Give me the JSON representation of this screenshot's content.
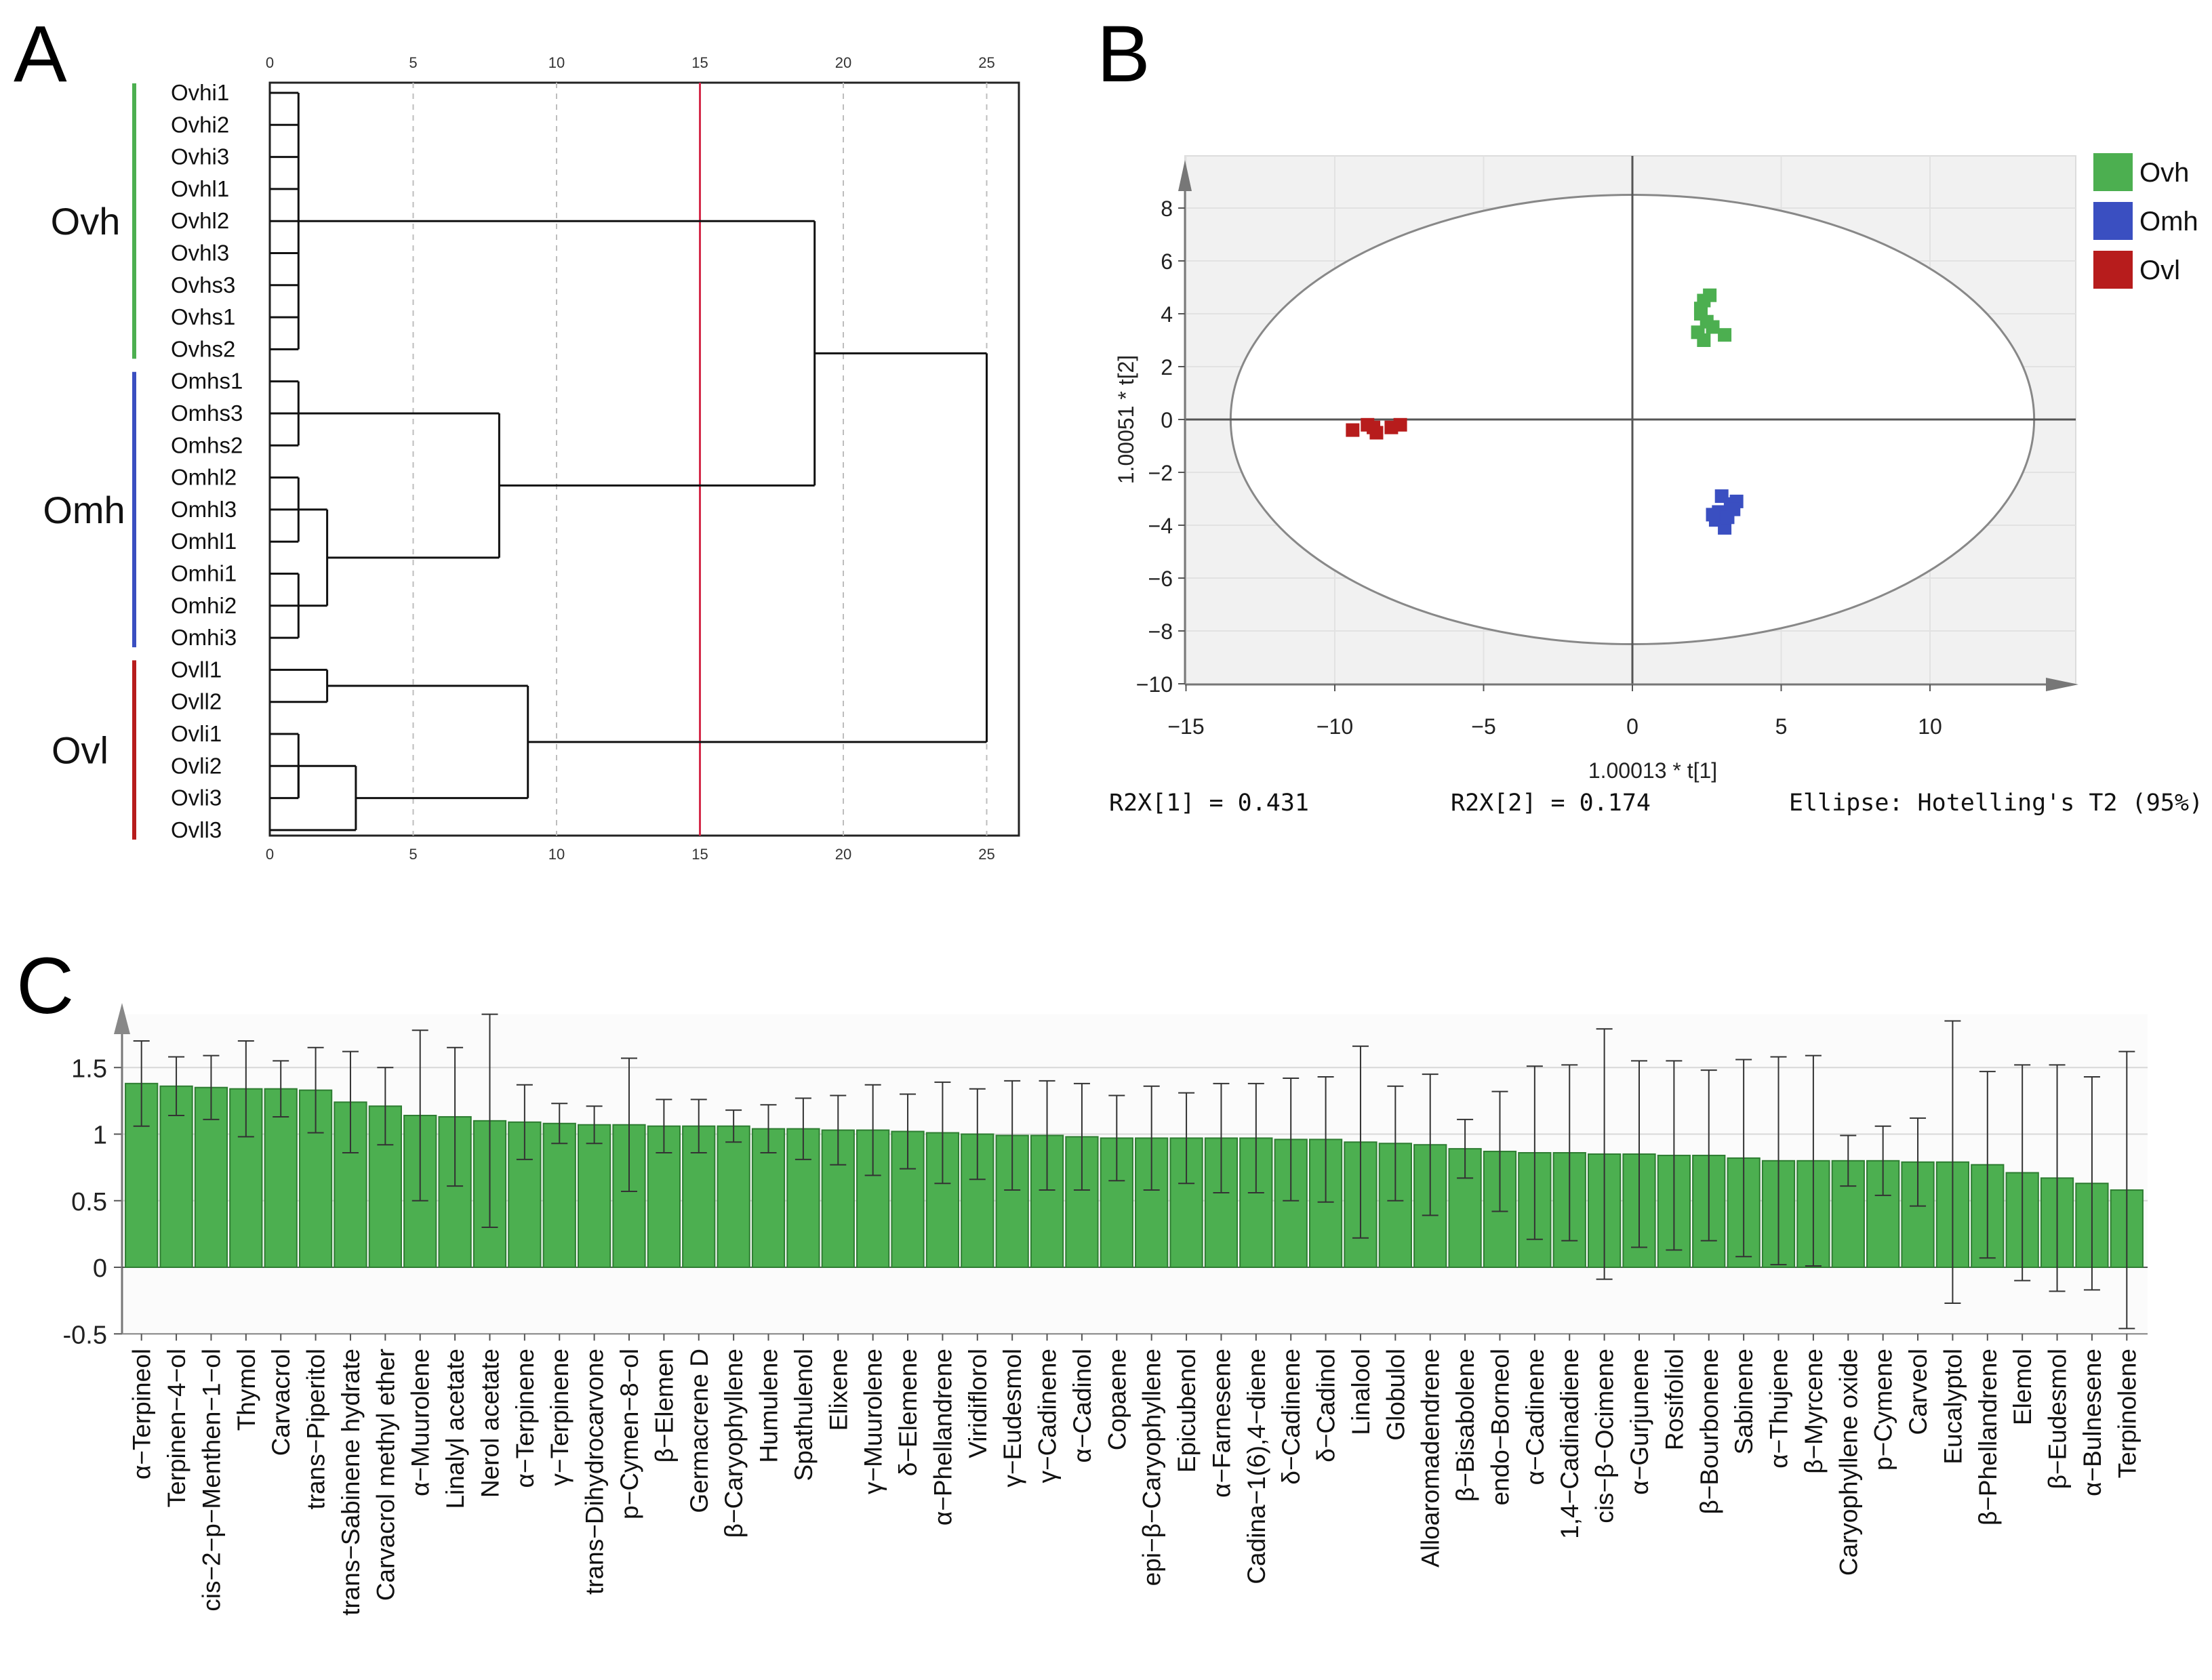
{
  "panels": {
    "a": "A",
    "b": "B",
    "c": "C"
  },
  "chart_data": [
    {
      "type": "dendrogram",
      "panel": "A",
      "axis_ticks": [
        0,
        5,
        10,
        15,
        20,
        25
      ],
      "cut_line_distance": 15,
      "cut_line_color": "#d42a4a",
      "leaves": [
        "Ovhi1",
        "Ovhi2",
        "Ovhi3",
        "Ovhl1",
        "Ovhl2",
        "Ovhl3",
        "Ovhs3",
        "Ovhs1",
        "Ovhs2",
        "Omhs1",
        "Omhs3",
        "Omhs2",
        "Omhl2",
        "Omhl3",
        "Omhl1",
        "Omhi1",
        "Omhi2",
        "Omhi3",
        "Ovll1",
        "Ovll2",
        "Ovli1",
        "Ovli2",
        "Ovli3",
        "Ovll3"
      ],
      "groups": [
        {
          "name": "Ovh",
          "color": "#4caf50",
          "leaf_range": [
            0,
            8
          ]
        },
        {
          "name": "Omh",
          "color": "#3a4fc1",
          "leaf_range": [
            9,
            17
          ]
        },
        {
          "name": "Ovl",
          "color": "#b71c1c",
          "leaf_range": [
            18,
            23
          ]
        }
      ],
      "merges": [
        {
          "left": [
            0,
            1,
            2,
            3,
            4,
            5,
            6,
            7,
            8
          ],
          "height": 1
        },
        {
          "left": [
            9,
            10,
            11
          ],
          "height": 1
        },
        {
          "left": [
            12,
            13,
            14
          ],
          "height": 1
        },
        {
          "left": [
            15,
            16,
            17
          ],
          "height": 1
        },
        {
          "left": [
            21,
            22
          ],
          "height": 1
        },
        {
          "a": "Omhl",
          "b": "Omhi",
          "height": 2
        },
        {
          "a": "Ovll1",
          "b": "Ovll2",
          "height": 2
        },
        {
          "a": "Ovli",
          "b": "Ovll3",
          "height": 3
        },
        {
          "a": "Omhs",
          "b": "Omhl+Omhi",
          "height": 8
        },
        {
          "a": "Ovll",
          "b": "Ovli+Ovll3",
          "height": 9
        },
        {
          "a": "Ovh",
          "b": "Omh",
          "height": 19
        },
        {
          "a": "Ovh+Omh",
          "b": "Ovl",
          "height": 25
        }
      ]
    },
    {
      "type": "scatter",
      "panel": "B",
      "xlim": [
        -15,
        15
      ],
      "ylim": [
        -10,
        9
      ],
      "xticks": [
        -15,
        -10,
        -5,
        0,
        5,
        10
      ],
      "yticks": [
        -10,
        -8,
        -6,
        -4,
        -2,
        0,
        2,
        4,
        6,
        8
      ],
      "xlabel": "1.00013 * t[1]",
      "ylabel": "1.00051 * t[2]",
      "ellipse": {
        "rx": 13.5,
        "ry": 8.5
      },
      "footer": {
        "r2x1": "R2X[1] = 0.431",
        "r2x2": "R2X[2] = 0.174",
        "ellipse_note": "Ellipse: Hotelling's T2 (95%)"
      },
      "series": [
        {
          "name": "Ovh",
          "color": "#4caf50",
          "points": [
            [
              2.4,
              4.5
            ],
            [
              2.6,
              4.7
            ],
            [
              2.3,
              4.0
            ],
            [
              2.5,
              3.7
            ],
            [
              2.2,
              3.3
            ],
            [
              2.4,
              3.0
            ],
            [
              3.1,
              3.2
            ],
            [
              2.3,
              4.2
            ],
            [
              2.7,
              3.5
            ]
          ]
        },
        {
          "name": "Omh",
          "color": "#3a4fc1",
          "points": [
            [
              3.0,
              -2.9
            ],
            [
              3.3,
              -3.2
            ],
            [
              2.9,
              -3.5
            ],
            [
              3.5,
              -3.1
            ],
            [
              2.8,
              -3.8
            ],
            [
              3.1,
              -4.1
            ],
            [
              2.7,
              -3.6
            ],
            [
              3.2,
              -3.7
            ],
            [
              3.4,
              -3.4
            ]
          ]
        },
        {
          "name": "Ovl",
          "color": "#b71c1c",
          "points": [
            [
              -9.4,
              -0.4
            ],
            [
              -8.9,
              -0.2
            ],
            [
              -8.6,
              -0.5
            ],
            [
              -8.1,
              -0.3
            ],
            [
              -7.8,
              -0.2
            ],
            [
              -8.7,
              -0.3
            ]
          ]
        }
      ]
    },
    {
      "type": "bar",
      "panel": "C",
      "ylim": [
        -0.5,
        1.9
      ],
      "yticks": [
        -0.5,
        0,
        0.5,
        1,
        1.5
      ],
      "ytick_labels": [
        "-0.5",
        "0",
        "0.5",
        "1",
        "1.5"
      ],
      "bar_color": "#4caf50",
      "categories": [
        "α−Terpineol",
        "Terpinen−4−ol",
        "cis−2−p−Menthen−1−ol",
        "Thymol",
        "Carvacrol",
        "trans−Piperitol",
        "trans−Sabinene hydrate",
        "Carvacrol methyl ether",
        "α−Muurolene",
        "Linalyl acetate",
        "Nerol acetate",
        "α−Terpinene",
        "γ−Terpinene",
        "trans−Dihydrocarvone",
        "p−Cymen−8−ol",
        "β−Elemen",
        "Germacrene D",
        "β−Caryophyllene",
        "Humulene",
        "Spathulenol",
        "Elixene",
        "γ−Muurolene",
        "δ−Elemene",
        "α−Phellandrene",
        "Viridiflorol",
        "γ−Eudesmol",
        "γ−Cadinene",
        "α−Cadinol",
        "Copaene",
        "epi−β−Caryophyllene",
        "Epicubenol",
        "α−Farnesene",
        "Cadina−1(6),4−diene",
        "δ−Cadinene",
        "δ−Cadinol",
        "Linalool",
        "Globulol",
        "Alloaromadendrene",
        "β−Bisabolene",
        "endo−Borneol",
        "α−Cadinene",
        "1,4−Cadinadiene",
        "cis−β−Ocimene",
        "α−Gurjunene",
        "Rosifoliol",
        "β−Bourbonene",
        "Sabinene",
        "α−Thujene",
        "β−Myrcene",
        "Caryophyllene oxide",
        "p−Cymene",
        "Carveol",
        "Eucalyptol",
        "β−Phellandrene",
        "Elemol",
        "β−Eudesmol",
        "α−Bulnesene",
        "Terpinolene"
      ],
      "values": [
        1.38,
        1.36,
        1.35,
        1.34,
        1.34,
        1.33,
        1.24,
        1.21,
        1.14,
        1.13,
        1.1,
        1.09,
        1.08,
        1.07,
        1.07,
        1.06,
        1.06,
        1.06,
        1.04,
        1.04,
        1.03,
        1.03,
        1.02,
        1.01,
        1.0,
        0.99,
        0.99,
        0.98,
        0.97,
        0.97,
        0.97,
        0.97,
        0.97,
        0.96,
        0.96,
        0.94,
        0.93,
        0.92,
        0.89,
        0.87,
        0.86,
        0.86,
        0.85,
        0.85,
        0.84,
        0.84,
        0.82,
        0.8,
        0.8,
        0.8,
        0.8,
        0.79,
        0.79,
        0.77,
        0.71,
        0.67,
        0.63,
        0.58
      ],
      "errors": [
        0.32,
        0.22,
        0.24,
        0.36,
        0.21,
        0.32,
        0.38,
        0.29,
        0.64,
        0.52,
        0.8,
        0.28,
        0.15,
        0.14,
        0.5,
        0.2,
        0.2,
        0.12,
        0.18,
        0.23,
        0.26,
        0.34,
        0.28,
        0.38,
        0.34,
        0.41,
        0.41,
        0.4,
        0.32,
        0.39,
        0.34,
        0.41,
        0.41,
        0.46,
        0.47,
        0.72,
        0.43,
        0.53,
        0.22,
        0.45,
        0.65,
        0.66,
        0.94,
        0.7,
        0.71,
        0.64,
        0.74,
        0.78,
        0.79,
        0.19,
        0.26,
        0.33,
        1.06,
        0.7,
        0.81,
        0.85,
        0.8,
        1.04
      ]
    }
  ]
}
